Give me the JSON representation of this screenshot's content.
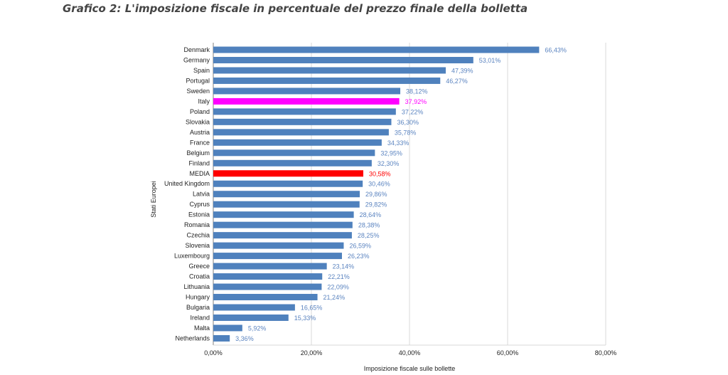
{
  "page": {
    "title": "Grafico 2: L'imposizione fiscale in percentuale del prezzo finale della bolletta"
  },
  "colors": {
    "bar": "#4f81bd",
    "value_label": "#5b84c0",
    "highlight_italy": "#ff00ff",
    "highlight_media": "#ff0000",
    "grid": "#d9d9d9",
    "axis": "#7f7f7f"
  },
  "chart_data": {
    "type": "bar",
    "orientation": "horizontal",
    "title": "Grafico 2: L'imposizione fiscale in percentuale del prezzo finale della bolletta",
    "xlabel": "Imposizione fiscale sulle bollette",
    "ylabel": "Stati Europei",
    "xlim": [
      0,
      80
    ],
    "xticks": [
      "0,00%",
      "20,00%",
      "40,00%",
      "60,00%",
      "80,00%"
    ],
    "grid": "vertical",
    "categories": [
      "Denmark",
      "Germany",
      "Spain",
      "Portugal",
      "Sweden",
      "Italy",
      "Poland",
      "Slovakia",
      "Austria",
      "France",
      "Belgium",
      "Finland",
      "MEDIA",
      "United Kingdom",
      "Latvia",
      "Cyprus",
      "Estonia",
      "Romania",
      "Czechia",
      "Slovenia",
      "Luxembourg",
      "Greece",
      "Croatia",
      "Lithuania",
      "Hungary",
      "Bulgaria",
      "Ireland",
      "Malta",
      "Netherlands"
    ],
    "values": [
      66.43,
      53.01,
      47.39,
      46.27,
      38.12,
      37.92,
      37.22,
      36.3,
      35.78,
      34.33,
      32.95,
      32.3,
      30.58,
      30.46,
      29.86,
      29.82,
      28.64,
      28.38,
      28.25,
      26.59,
      26.23,
      23.14,
      22.21,
      22.09,
      21.24,
      16.65,
      15.33,
      5.92,
      3.36
    ],
    "value_labels": [
      "66,43%",
      "53,01%",
      "47,39%",
      "46,27%",
      "38,12%",
      "37,92%",
      "37,22%",
      "36,30%",
      "35,78%",
      "34,33%",
      "32,95%",
      "32,30%",
      "30,58%",
      "30,46%",
      "29,86%",
      "29,82%",
      "28,64%",
      "28,38%",
      "28,25%",
      "26,59%",
      "26,23%",
      "23,14%",
      "22,21%",
      "22,09%",
      "21,24%",
      "16,65%",
      "15,33%",
      "5,92%",
      "3,36%"
    ],
    "highlights": {
      "Italy": "#ff00ff",
      "MEDIA": "#ff0000"
    }
  }
}
